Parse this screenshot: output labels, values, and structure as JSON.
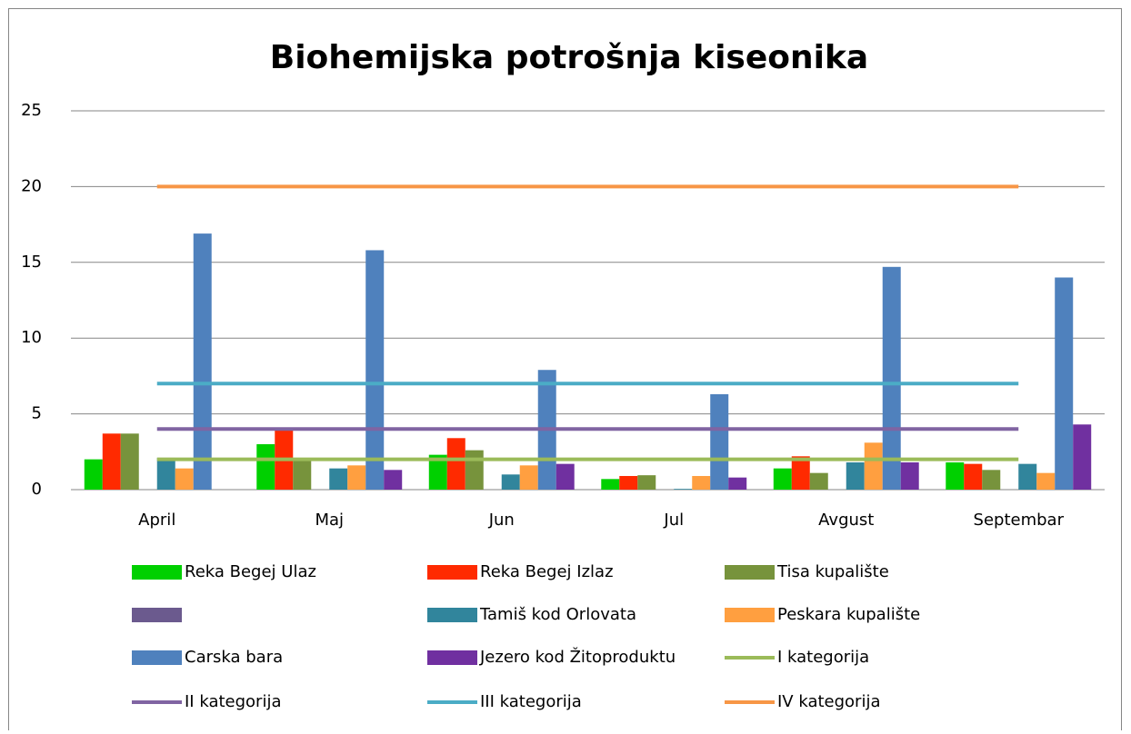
{
  "chart_data": {
    "type": "bar",
    "title": "Biohemijska potrošnja kiseonika",
    "categories": [
      "April",
      "Maj",
      "Jun",
      "Jul",
      "Avgust",
      "Septembar"
    ],
    "series": [
      {
        "name": "Reka Begej Ulaz",
        "color": "#00d000",
        "values": [
          2.0,
          3.0,
          2.3,
          0.7,
          1.4,
          1.8
        ]
      },
      {
        "name": "Reka Begej Izlaz",
        "color": "#ff2a00",
        "values": [
          3.7,
          3.9,
          3.4,
          0.9,
          2.2,
          1.7
        ]
      },
      {
        "name": "Tisa kupalište",
        "color": "#77933c",
        "values": [
          3.7,
          2.0,
          2.6,
          0.95,
          1.1,
          1.3
        ]
      },
      {
        "name": null,
        "color": "#6b5a8e",
        "values": [
          null,
          null,
          null,
          null,
          null,
          null
        ]
      },
      {
        "name": "Tamiš kod Orlovata",
        "color": "#31859c",
        "values": [
          2.1,
          1.4,
          1.0,
          0.05,
          1.8,
          1.7
        ]
      },
      {
        "name": "Peskara kupalište",
        "color": "#ff9f40",
        "values": [
          1.4,
          1.6,
          1.6,
          0.9,
          3.1,
          1.1
        ]
      },
      {
        "name": "Carska bara",
        "color": "#4f81bd",
        "values": [
          16.9,
          15.8,
          7.9,
          6.3,
          14.7,
          14.0
        ]
      },
      {
        "name": "Jezero kod Žitoproduktu",
        "color": "#7030a0",
        "values": [
          null,
          1.3,
          1.7,
          0.8,
          1.8,
          4.3
        ]
      },
      {
        "name": "I kategorija",
        "type": "line",
        "color": "#9bbb59",
        "values": [
          2,
          2,
          2,
          2,
          2,
          2
        ]
      },
      {
        "name": "II kategorija",
        "type": "line",
        "color": "#8064a2",
        "values": [
          4,
          4,
          4,
          4,
          4,
          4
        ]
      },
      {
        "name": "III kategorija",
        "type": "line",
        "color": "#4bacc6",
        "values": [
          7,
          7,
          7,
          7,
          7,
          7
        ]
      },
      {
        "name": "IV kategorija",
        "type": "line",
        "color": "#f79646",
        "values": [
          20,
          20,
          20,
          20,
          20,
          20
        ]
      }
    ],
    "ylim": [
      0,
      25
    ],
    "yticks": [
      0,
      5,
      10,
      15,
      20,
      25
    ],
    "grid": true,
    "legend": "bottom"
  }
}
